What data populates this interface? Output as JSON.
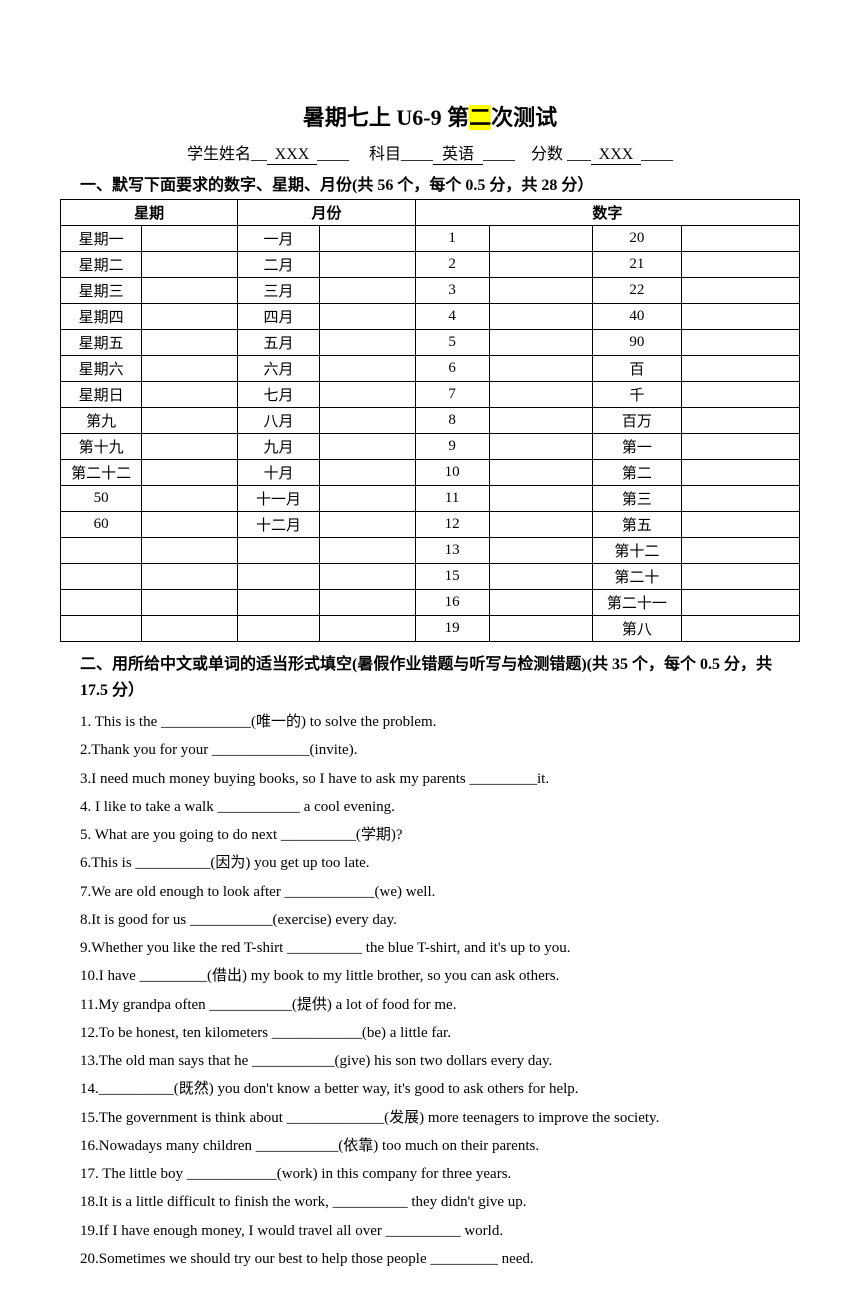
{
  "title": {
    "pre": "暑期七上 U6-9 第",
    "highlight": "二",
    "post": "次测试"
  },
  "info": {
    "name_label": "学生姓名",
    "name_value": "XXX",
    "subject_label": "科目",
    "subject_value": "英语",
    "score_label": "分数",
    "score_value": "XXX"
  },
  "section1": {
    "heading": "一、默写下面要求的数字、星期、月份(共 56 个，每个 0.5 分，共 28 分）",
    "headers": {
      "weekday": "星期",
      "month": "月份",
      "numbers": "数字"
    },
    "rows": [
      {
        "w": "星期一",
        "m": "一月",
        "n1": "1",
        "n2": "20"
      },
      {
        "w": "星期二",
        "m": "二月",
        "n1": "2",
        "n2": "21"
      },
      {
        "w": "星期三",
        "m": "三月",
        "n1": "3",
        "n2": "22"
      },
      {
        "w": "星期四",
        "m": "四月",
        "n1": "4",
        "n2": "40"
      },
      {
        "w": "星期五",
        "m": "五月",
        "n1": "5",
        "n2": "90"
      },
      {
        "w": "星期六",
        "m": "六月",
        "n1": "6",
        "n2": "百"
      },
      {
        "w": "星期日",
        "m": "七月",
        "n1": "7",
        "n2": "千"
      },
      {
        "w": "第九",
        "m": "八月",
        "n1": "8",
        "n2": "百万"
      },
      {
        "w": "第十九",
        "m": "九月",
        "n1": "9",
        "n2": "第一"
      },
      {
        "w": "第二十二",
        "m": "十月",
        "n1": "10",
        "n2": "第二"
      },
      {
        "w": "50",
        "m": "十一月",
        "n1": "11",
        "n2": "第三"
      },
      {
        "w": "60",
        "m": "十二月",
        "n1": "12",
        "n2": "第五"
      },
      {
        "w": "",
        "m": "",
        "n1": "13",
        "n2": "第十二"
      },
      {
        "w": "",
        "m": "",
        "n1": "15",
        "n2": "第二十"
      },
      {
        "w": "",
        "m": "",
        "n1": "16",
        "n2": "第二十一"
      },
      {
        "w": "",
        "m": "",
        "n1": "19",
        "n2": "第八"
      }
    ]
  },
  "section2": {
    "heading": "二、用所给中文或单词的适当形式填空(暑假作业错题与听写与检测错题)(共 35 个，每个 0.5 分，共 17.5 分）",
    "questions": [
      "1. This is the ____________(唯一的) to solve the problem.",
      "2.Thank you for your _____________(invite).",
      "3.I need much money buying books, so I have to ask my parents _________it.",
      "4. I like to take a walk ___________ a cool evening.",
      "5. What are you going to do next __________(学期)?",
      "6.This is __________(因为) you get up too late.",
      "7.We are old enough to look after ____________(we) well.",
      "8.It is good for us ___________(exercise) every day.",
      "9.Whether you like the red T-shirt __________ the blue T-shirt, and it's up to you.",
      "10.I have _________(借出) my book to my little brother, so you can ask others.",
      "11.My grandpa often ___________(提供) a lot of food for me.",
      "12.To be honest, ten kilometers ____________(be) a little far.",
      "13.The old man says that he ___________(give) his son two dollars every day.",
      "14.__________(既然) you don't know a better way, it's good to ask others for help.",
      "15.The government is think about _____________(发展)  more teenagers to improve the society.",
      "16.Nowadays many children ___________(依靠) too much on their parents.",
      "17. The little boy ____________(work) in this company for three years.",
      "18.It is a little difficult to finish the work, __________ they didn't give up.",
      "19.If I have enough money, I would travel all over __________ world.",
      "20.Sometimes we should try our best to help those people _________ need."
    ]
  }
}
